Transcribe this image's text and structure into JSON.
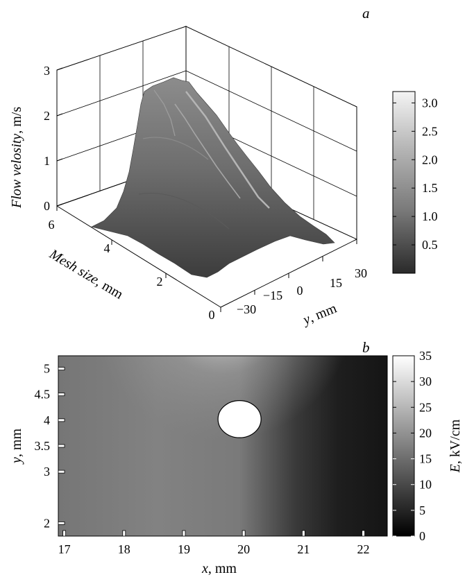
{
  "panels": {
    "a": {
      "label": "a",
      "zlabel_italic": "Flow velosity",
      "zlabel_unit": ", m/s",
      "ylabel_italic": "Mesh size",
      "ylabel_unit": ", mm",
      "xlabel_italic": "y",
      "xlabel_unit": ", mm"
    },
    "b": {
      "label": "b",
      "xlabel_italic": "x",
      "xlabel_unit": ", mm",
      "ylabel_italic": "y",
      "ylabel_unit": ", mm",
      "cbar_italic": "E",
      "cbar_unit": ", kV/cm"
    }
  },
  "chart_data": [
    {
      "type": "surface",
      "panel": "a",
      "z_ticks": [
        "0",
        "1",
        "2",
        "3"
      ],
      "zlim": [
        0,
        3
      ],
      "mesh_ticks": [
        "0",
        "2",
        "4",
        "6"
      ],
      "mesh_lim": [
        0,
        6
      ],
      "y_ticks": [
        "−30",
        "−15",
        "0",
        "15",
        "30"
      ],
      "y_lim": [
        -30,
        30
      ],
      "peak_velocity": 2.9,
      "peak_location": {
        "y": 0,
        "mesh": 6
      },
      "colorbar": {
        "ticks": [
          "3.0",
          "2.5",
          "2.0",
          "1.5",
          "1.0",
          "0.5"
        ],
        "values": [
          3.0,
          2.5,
          2.0,
          1.5,
          1.0,
          0.5
        ],
        "range": [
          0,
          3.2
        ],
        "colormap": "grayscale (dark = low, light = high)"
      },
      "grid": true
    },
    {
      "type": "heatmap",
      "panel": "b",
      "x_ticks": [
        "17",
        "18",
        "19",
        "20",
        "21",
        "22"
      ],
      "x_values": [
        17,
        18,
        19,
        20,
        21,
        22
      ],
      "xlim": [
        16.9,
        22.4
      ],
      "y_ticks": [
        "5",
        "4.5",
        "4",
        "3.5",
        "3",
        "2"
      ],
      "y_values": [
        5,
        4.5,
        4,
        3.5,
        3,
        2
      ],
      "ylim": [
        1.75,
        5.25
      ],
      "electrode": {
        "center_x": 19.93,
        "center_y": 4.02,
        "radius": 0.36
      },
      "field_left_kV_cm": 13,
      "field_right_kV_cm": 1,
      "field_max_near_electrode_kV_cm": 27,
      "colorbar": {
        "ticks": [
          "35",
          "30",
          "25",
          "20",
          "15",
          "10",
          "5",
          "0"
        ],
        "values": [
          35,
          30,
          25,
          20,
          15,
          10,
          5,
          0
        ],
        "range": [
          0,
          35
        ],
        "colormap": "grayscale (black = 0, white = 35)"
      }
    }
  ]
}
